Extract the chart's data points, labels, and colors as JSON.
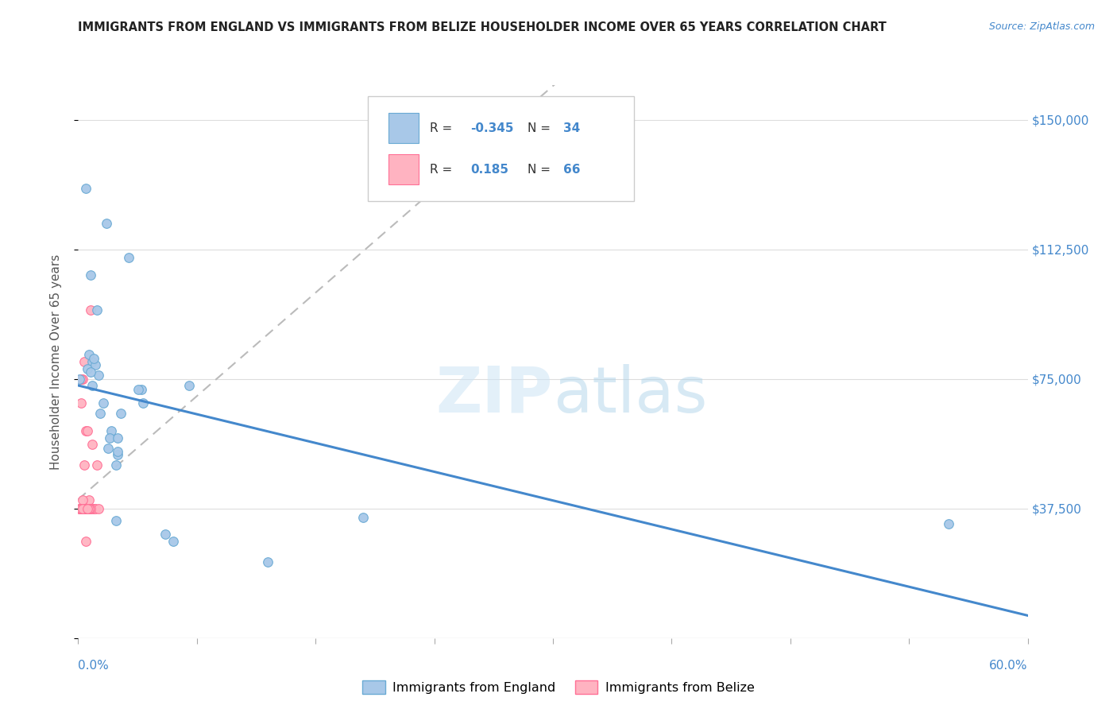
{
  "title": "IMMIGRANTS FROM ENGLAND VS IMMIGRANTS FROM BELIZE HOUSEHOLDER INCOME OVER 65 YEARS CORRELATION CHART",
  "source": "Source: ZipAtlas.com",
  "ylabel": "Householder Income Over 65 years",
  "xlim": [
    0.0,
    0.6
  ],
  "ylim": [
    0,
    160000
  ],
  "england_color": "#a8c8e8",
  "england_edge": "#6aaad4",
  "belize_color": "#ffb3c1",
  "belize_edge": "#ff7096",
  "england_R": -0.345,
  "england_N": 34,
  "belize_R": 0.185,
  "belize_N": 66,
  "eng_x": [
    0.001,
    0.018,
    0.005,
    0.008,
    0.032,
    0.012,
    0.009,
    0.007,
    0.006,
    0.011,
    0.013,
    0.01,
    0.008,
    0.009,
    0.014,
    0.016,
    0.021,
    0.02,
    0.019,
    0.04,
    0.041,
    0.038,
    0.18,
    0.07,
    0.027,
    0.025,
    0.025,
    0.024,
    0.06,
    0.055,
    0.025,
    0.024,
    0.55,
    0.12
  ],
  "eng_y": [
    75000,
    120000,
    130000,
    105000,
    110000,
    95000,
    80000,
    82000,
    78000,
    79000,
    76000,
    81000,
    77000,
    73000,
    65000,
    68000,
    60000,
    58000,
    55000,
    72000,
    68000,
    72000,
    35000,
    73000,
    65000,
    58000,
    53000,
    50000,
    28000,
    30000,
    54000,
    34000,
    33000,
    22000
  ],
  "bel_x": [
    0.001,
    0.002,
    0.003,
    0.004,
    0.005,
    0.005,
    0.006,
    0.007,
    0.008,
    0.009,
    0.01,
    0.01,
    0.011,
    0.012,
    0.013,
    0.003,
    0.004,
    0.003,
    0.002,
    0.003,
    0.004,
    0.005,
    0.002,
    0.003,
    0.004,
    0.006,
    0.003,
    0.002,
    0.003,
    0.004,
    0.008,
    0.003,
    0.002,
    0.004,
    0.005,
    0.003,
    0.003,
    0.004,
    0.005,
    0.002,
    0.003,
    0.004,
    0.008,
    0.003,
    0.002,
    0.001,
    0.004,
    0.005,
    0.003,
    0.002,
    0.004,
    0.003,
    0.002,
    0.005,
    0.003,
    0.004,
    0.002,
    0.003,
    0.007,
    0.004,
    0.003,
    0.005,
    0.007,
    0.002,
    0.003,
    0.006
  ],
  "bel_y": [
    37500,
    68000,
    75000,
    80000,
    37500,
    60000,
    37500,
    40000,
    37500,
    56000,
    37500,
    37500,
    37500,
    50000,
    37500,
    37500,
    37500,
    37500,
    37500,
    37500,
    37500,
    37500,
    37500,
    37500,
    37500,
    60000,
    37500,
    37500,
    37500,
    37500,
    95000,
    37500,
    37500,
    37500,
    37500,
    37500,
    37500,
    50000,
    37500,
    75000,
    37500,
    37500,
    37500,
    37500,
    37500,
    37500,
    37500,
    37500,
    37500,
    37500,
    37500,
    40000,
    37500,
    28000,
    37500,
    37500,
    37500,
    37500,
    37500,
    37500,
    37500,
    37500,
    37500,
    37500,
    37500,
    37500
  ],
  "yticks": [
    0,
    37500,
    75000,
    112500,
    150000
  ],
  "ytick_labels": [
    "$37,500",
    "$75,000",
    "$112,500",
    "$150,000"
  ],
  "watermark_zip": "ZIP",
  "watermark_atlas": "atlas",
  "background_color": "#ffffff",
  "grid_color": "#dddddd",
  "line_eng_color": "#4488cc",
  "line_bel_color": "#bbbbbb"
}
